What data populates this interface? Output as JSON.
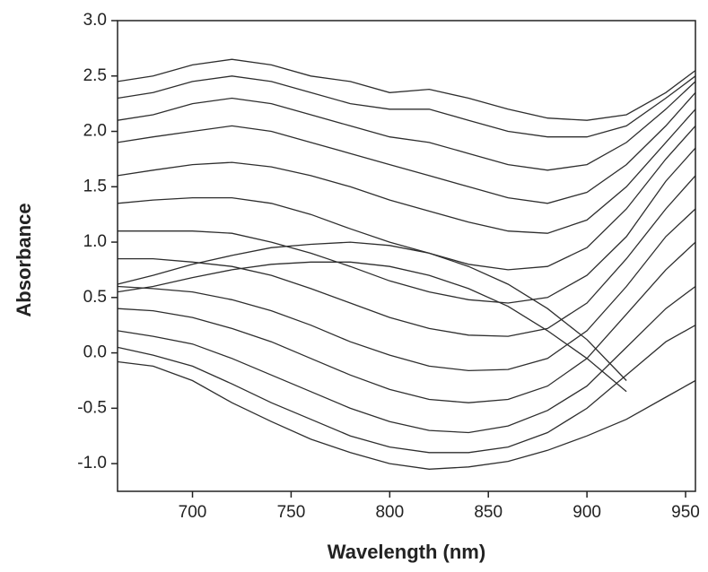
{
  "chart_data": {
    "type": "line",
    "x_label": "Wavelength (nm)",
    "y_label": "Absorbance",
    "color": "#2e2e2e",
    "x": [
      662,
      680,
      700,
      720,
      740,
      760,
      780,
      800,
      820,
      840,
      860,
      880,
      900,
      920,
      940,
      955
    ],
    "series": [
      {
        "values": [
          2.45,
          2.5,
          2.6,
          2.65,
          2.6,
          2.5,
          2.45,
          2.35,
          2.38,
          2.3,
          2.2,
          2.12,
          2.1,
          2.15,
          2.35,
          2.55
        ]
      },
      {
        "values": [
          2.3,
          2.35,
          2.45,
          2.5,
          2.45,
          2.35,
          2.25,
          2.2,
          2.2,
          2.1,
          2.0,
          1.95,
          1.95,
          2.05,
          2.3,
          2.5
        ]
      },
      {
        "values": [
          2.1,
          2.15,
          2.25,
          2.3,
          2.25,
          2.15,
          2.05,
          1.95,
          1.9,
          1.8,
          1.7,
          1.65,
          1.7,
          1.9,
          2.2,
          2.45
        ]
      },
      {
        "values": [
          1.9,
          1.95,
          2.0,
          2.05,
          2.0,
          1.9,
          1.8,
          1.7,
          1.6,
          1.5,
          1.4,
          1.35,
          1.45,
          1.7,
          2.05,
          2.35
        ]
      },
      {
        "values": [
          1.6,
          1.65,
          1.7,
          1.72,
          1.68,
          1.6,
          1.5,
          1.38,
          1.28,
          1.18,
          1.1,
          1.08,
          1.2,
          1.5,
          1.9,
          2.2
        ]
      },
      {
        "values": [
          1.35,
          1.38,
          1.4,
          1.4,
          1.35,
          1.25,
          1.12,
          1.0,
          0.9,
          0.8,
          0.75,
          0.78,
          0.95,
          1.3,
          1.75,
          2.05
        ]
      },
      {
        "values": [
          1.1,
          1.1,
          1.1,
          1.08,
          1.0,
          0.9,
          0.78,
          0.65,
          0.55,
          0.48,
          0.45,
          0.5,
          0.7,
          1.05,
          1.55,
          1.85
        ]
      },
      {
        "values": [
          0.85,
          0.85,
          0.82,
          0.78,
          0.7,
          0.58,
          0.45,
          0.32,
          0.22,
          0.16,
          0.15,
          0.22,
          0.45,
          0.85,
          1.3,
          1.6
        ]
      },
      {
        "values": [
          0.6,
          0.58,
          0.55,
          0.48,
          0.38,
          0.25,
          0.1,
          -0.02,
          -0.12,
          -0.16,
          -0.15,
          -0.05,
          0.2,
          0.6,
          1.05,
          1.3
        ]
      },
      {
        "values": [
          0.4,
          0.38,
          0.32,
          0.22,
          0.1,
          -0.05,
          -0.2,
          -0.33,
          -0.42,
          -0.45,
          -0.42,
          -0.3,
          -0.05,
          0.35,
          0.75,
          1.0
        ]
      },
      {
        "values": [
          0.2,
          0.15,
          0.08,
          -0.05,
          -0.2,
          -0.35,
          -0.5,
          -0.62,
          -0.7,
          -0.72,
          -0.66,
          -0.52,
          -0.3,
          0.05,
          0.4,
          0.6
        ]
      },
      {
        "values": [
          0.05,
          -0.02,
          -0.12,
          -0.28,
          -0.45,
          -0.6,
          -0.75,
          -0.85,
          -0.9,
          -0.9,
          -0.85,
          -0.72,
          -0.5,
          -0.2,
          0.1,
          0.25
        ]
      },
      {
        "values": [
          -0.08,
          -0.12,
          -0.25,
          -0.45,
          -0.62,
          -0.78,
          -0.9,
          -1.0,
          -1.05,
          -1.03,
          -0.98,
          -0.88,
          -0.75,
          -0.6,
          -0.4,
          -0.25
        ]
      },
      {
        "values": [
          0.62,
          0.7,
          0.8,
          0.88,
          0.95,
          0.98,
          1.0,
          0.97,
          0.9,
          0.78,
          0.62,
          0.4,
          0.12,
          -0.25,
          null,
          null
        ]
      },
      {
        "values": [
          0.55,
          0.6,
          0.68,
          0.75,
          0.8,
          0.82,
          0.82,
          0.78,
          0.7,
          0.58,
          0.42,
          0.2,
          -0.05,
          -0.35,
          null,
          null
        ]
      }
    ],
    "xlim": [
      662,
      955
    ],
    "xticks": [
      700,
      750,
      800,
      850,
      900,
      950
    ],
    "ylim": [
      -1.25,
      3.0
    ],
    "yticks": [
      {
        "value": -1.0,
        "label": "-1.0"
      },
      -0.5,
      {
        "value": 0.0,
        "label": "0.0"
      },
      0.5,
      {
        "value": 1.0,
        "label": "1.0"
      },
      1.5,
      {
        "value": 2.0,
        "label": "2.0"
      },
      2.5,
      {
        "value": 3.0,
        "label": "3.0"
      }
    ],
    "grid": false
  }
}
